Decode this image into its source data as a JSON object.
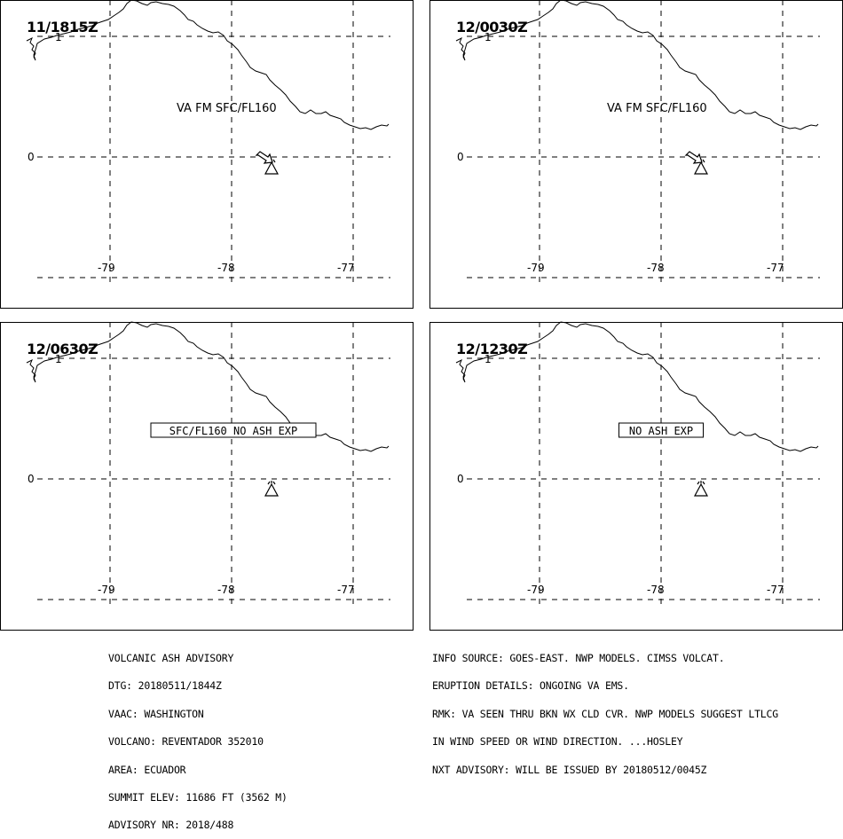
{
  "panels": [
    {
      "time": "11/1815Z",
      "label": "VA FM SFC/FL160",
      "label_boxed": false,
      "arrow": true
    },
    {
      "time": "12/0030Z",
      "label": "VA FM SFC/FL160",
      "label_boxed": false,
      "arrow": true
    },
    {
      "time": "12/0630Z",
      "label": "SFC/FL160 NO ASH EXP",
      "label_boxed": true,
      "arrow": false
    },
    {
      "time": "12/1230Z",
      "label": "NO ASH EXP",
      "label_boxed": true,
      "arrow": false
    }
  ],
  "axes": {
    "lon_labels": [
      "-79",
      "-78",
      "-77"
    ],
    "lat_labels": [
      "1",
      "0"
    ]
  },
  "advisory_left": [
    "VOLCANIC ASH ADVISORY",
    "DTG: 20180511/1844Z",
    "VAAC: WASHINGTON",
    "VOLCANO: REVENTADOR 352010",
    "AREA: ECUADOR",
    "SUMMIT ELEV: 11686 FT (3562 M)",
    "ADVISORY NR: 2018/488"
  ],
  "advisory_right": [
    "INFO SOURCE: GOES-EAST. NWP MODELS. CIMSS VOLCAT.",
    "ERUPTION DETAILS: ONGOING VA EMS.",
    "RMK: VA SEEN THRU BKN WX CLD CVR. NWP MODELS SUGGEST LTLCG",
    "IN WIND SPEED OR WIND DIRECTION. ...HOSLEY",
    "NXT ADVISORY: WILL BE ISSUED BY 20180512/0045Z"
  ],
  "colors": {
    "ink": "#000000",
    "background": "#ffffff"
  }
}
